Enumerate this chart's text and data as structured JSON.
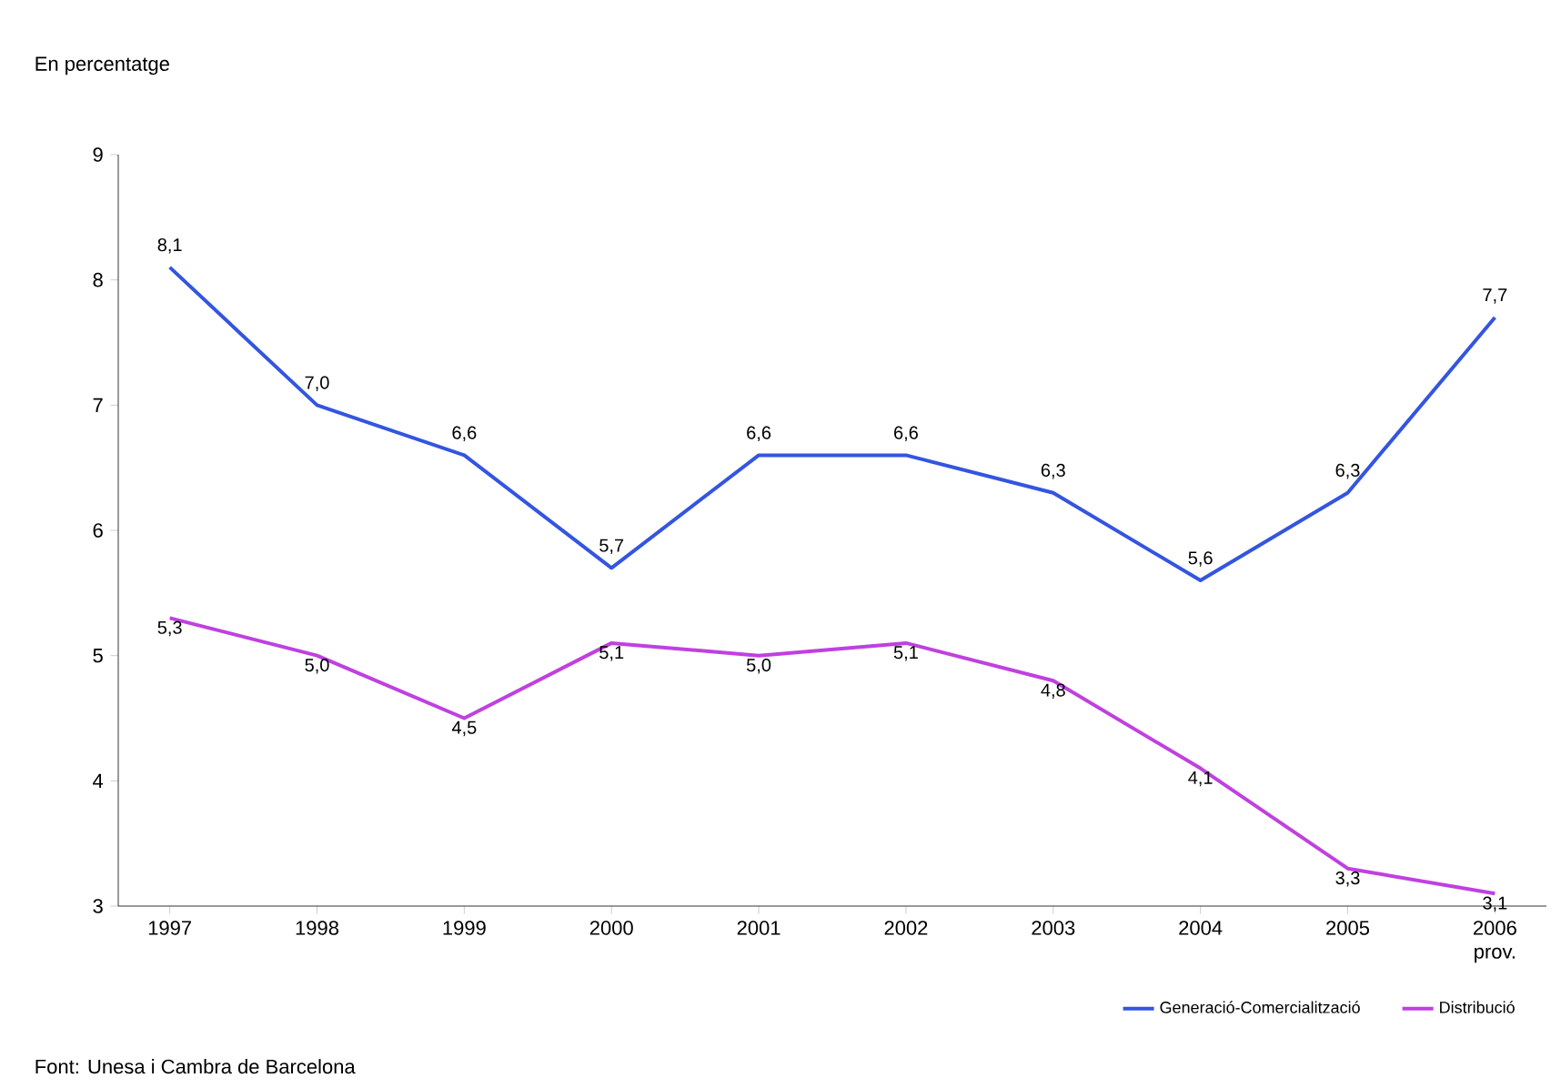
{
  "chart_data": {
    "type": "line",
    "ylabel": "En percentatge",
    "categories": [
      "1997",
      "1998",
      "1999",
      "2000",
      "2001",
      "2002",
      "2003",
      "2004",
      "2005",
      "2006 prov."
    ],
    "ylim": [
      3,
      9
    ],
    "yticks": [
      3,
      4,
      5,
      6,
      7,
      8,
      9
    ],
    "legend": "bottom right",
    "marker": "none",
    "line_style": "solid",
    "grid": false,
    "series": [
      {
        "name": "Generació-Comercialització",
        "color": "#3355e0",
        "values": [
          8.1,
          7.0,
          6.6,
          5.7,
          6.6,
          6.6,
          6.3,
          5.6,
          6.3,
          7.7
        ],
        "value_labels": [
          "8,1",
          "7,0",
          "6,6",
          "5,7",
          "6,6",
          "6,6",
          "6,3",
          "5,6",
          "6,3",
          "7,7"
        ]
      },
      {
        "name": "Distribució",
        "color": "#c040e0",
        "values": [
          5.3,
          5.0,
          4.5,
          5.1,
          5.0,
          5.1,
          4.8,
          4.1,
          3.3,
          3.1
        ],
        "value_labels": [
          "5,3",
          "5,0",
          "4,5",
          "5,1",
          "5,0",
          "5,1",
          "4,8",
          "4,1",
          "3,3",
          "3,1"
        ]
      }
    ],
    "annotations": [
      "Font: Unesa i Cambra de Barcelona"
    ]
  }
}
